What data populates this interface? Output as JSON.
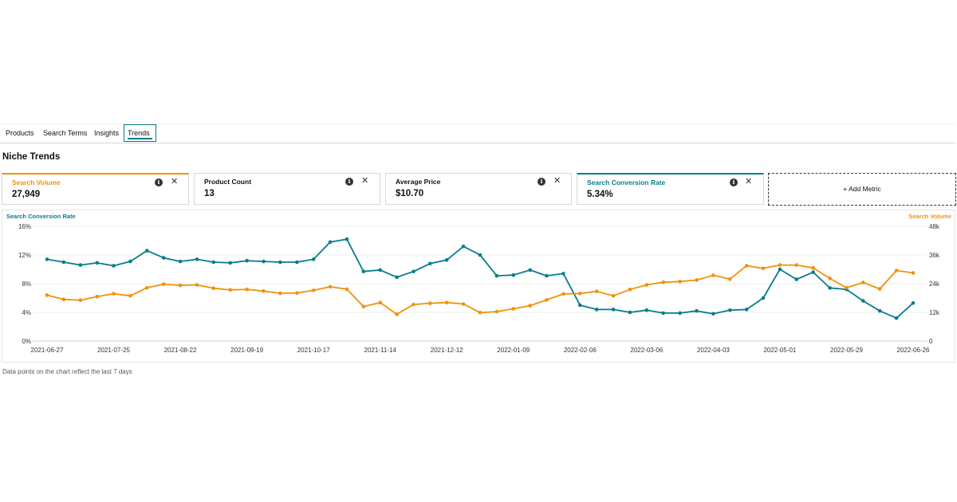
{
  "tabs": [
    {
      "label": "Products"
    },
    {
      "label": "Search Terms"
    },
    {
      "label": "Insights"
    },
    {
      "label": "Trends",
      "active": true
    }
  ],
  "section_title": "Niche Trends",
  "metric_cards": [
    {
      "title": "Search Volume",
      "value": "27,949",
      "color": "#f0920a"
    },
    {
      "title": "Product Count",
      "value": "13"
    },
    {
      "title": "Average Price",
      "value": "$10.70"
    },
    {
      "title": "Search Conversion Rate",
      "value": "5.34%",
      "color": "#067d8c"
    }
  ],
  "add_metric_label": "+ Add Metric",
  "info_glyph": "i",
  "close_glyph": "✕",
  "footnote": "Data points on the chart reflect the last 7 days",
  "chart_data": {
    "type": "line",
    "left_axis_title": "Search Conversion Rate",
    "right_axis_title": "Search Volume",
    "left_ticks": [
      "0%",
      "4%",
      "8%",
      "12%",
      "16%"
    ],
    "right_ticks": [
      "0",
      "12k",
      "24k",
      "36k",
      "48k"
    ],
    "left_ylim": [
      0,
      16
    ],
    "right_ylim": [
      0,
      48000
    ],
    "x_tick_labels": [
      "2021-06-27",
      "2021-07-25",
      "2021-08-22",
      "2021-09-19",
      "2021-10-17",
      "2021-11-14",
      "2021-12-12",
      "2022-01-09",
      "2022-02-06",
      "2022-03-06",
      "2022-04-03",
      "2022-05-01",
      "2022-05-29",
      "2022-06-26"
    ],
    "x_start": "2021-06-27",
    "x_end": "2022-06-26",
    "grid": true,
    "series": [
      {
        "name": "Search Conversion Rate",
        "axis": "left",
        "color": "#067d8c",
        "values": [
          11.4,
          11.0,
          10.6,
          10.9,
          10.5,
          11.1,
          12.6,
          11.6,
          11.1,
          11.4,
          11.0,
          10.9,
          11.2,
          11.1,
          11.0,
          11.0,
          11.4,
          13.8,
          14.2,
          9.7,
          9.9,
          8.9,
          9.7,
          10.8,
          11.3,
          13.2,
          12.0,
          9.1,
          9.2,
          9.9,
          9.1,
          9.4,
          5.0,
          4.4,
          4.4,
          4.0,
          4.3,
          3.9,
          3.9,
          4.2,
          3.8,
          4.3,
          4.4,
          6.0,
          10.0,
          8.6,
          9.6,
          7.4,
          7.2,
          5.6,
          4.2,
          3.2,
          5.3
        ]
      },
      {
        "name": "Search Volume",
        "axis": "right",
        "color": "#f0920a",
        "values": [
          19200,
          17400,
          17100,
          18600,
          19800,
          18900,
          22300,
          23800,
          23300,
          23500,
          22100,
          21400,
          21600,
          20900,
          20000,
          20100,
          21200,
          22700,
          21700,
          14400,
          16100,
          11200,
          15300,
          15800,
          16100,
          15500,
          11900,
          12300,
          13500,
          14800,
          17200,
          19700,
          19900,
          20800,
          18900,
          21600,
          23500,
          24600,
          24900,
          25500,
          27500,
          25900,
          31500,
          30400,
          31800,
          31800,
          30600,
          26200,
          22300,
          24500,
          21800,
          29500,
          28500
        ]
      }
    ]
  }
}
